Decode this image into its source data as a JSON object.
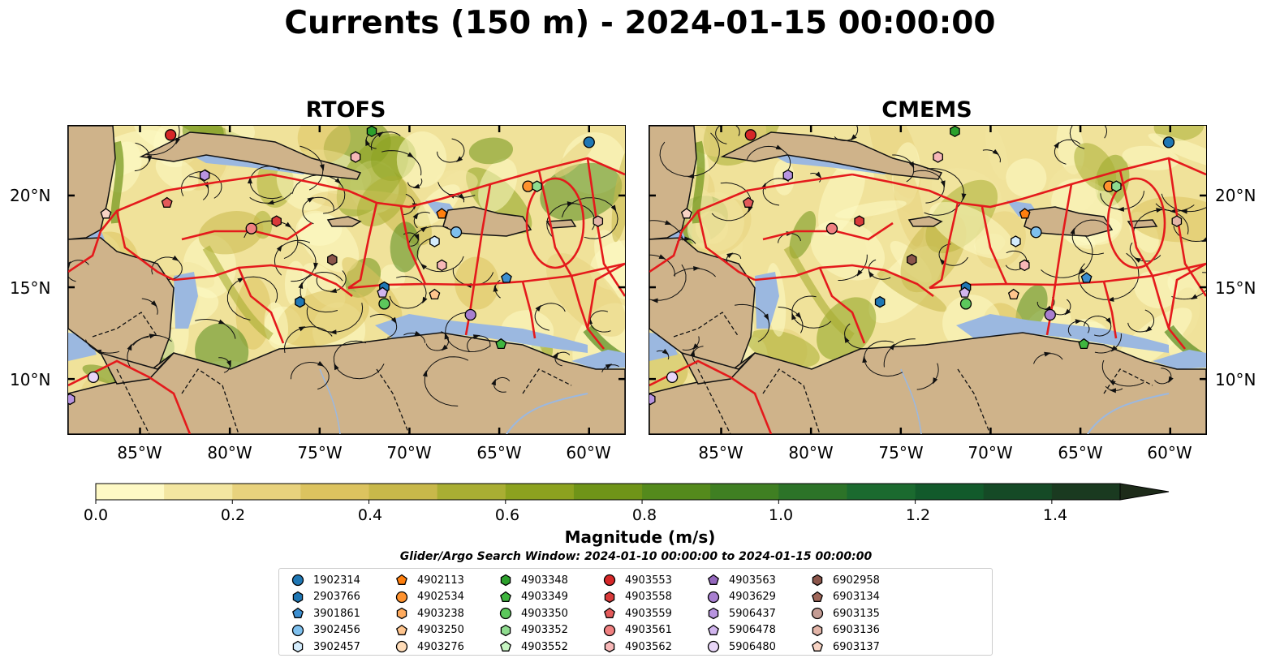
{
  "title": "Currents (150 m) - 2024-01-15 00:00:00",
  "panels": [
    {
      "title": "RTOFS"
    },
    {
      "title": "CMEMS"
    }
  ],
  "lat_labels": [
    "20°N",
    "15°N",
    "10°N"
  ],
  "lon_labels": [
    "85°W",
    "80°W",
    "75°W",
    "70°W",
    "65°W",
    "60°W"
  ],
  "colorbar": {
    "label": "Magnitude (m/s)",
    "ticks": [
      "0.0",
      "0.2",
      "0.4",
      "0.6",
      "0.8",
      "1.0",
      "1.2",
      "1.4"
    ],
    "min": 0.0,
    "max": 1.5,
    "extend": "max",
    "colors": [
      "#fef9c5",
      "#f3e6a1",
      "#e8d27d",
      "#dcc35f",
      "#c8b84a",
      "#a9ae33",
      "#8ca21f",
      "#6f9418",
      "#548a1c",
      "#3f7f22",
      "#2c7328",
      "#1b6a2f",
      "#125a2b",
      "#154a26",
      "#1a3a20",
      "#1d2b19"
    ]
  },
  "search_window": "Glider/Argo Search Window: 2024-01-10 00:00:00 to 2024-01-15 00:00:00",
  "map_colors": {
    "land": "#cfb38a",
    "water_shallow": "#9bb8e0",
    "sea_base": "#f0e29a",
    "eez": "#e41a1c"
  },
  "legend": [
    {
      "id": "1902314",
      "marker": "circle",
      "color": "#1f77b4"
    },
    {
      "id": "2903766",
      "marker": "hexagon",
      "color": "#1f77b4"
    },
    {
      "id": "3901861",
      "marker": "pentagon",
      "color": "#3c8fd1"
    },
    {
      "id": "3902456",
      "marker": "circle",
      "color": "#7ec0ee"
    },
    {
      "id": "3902457",
      "marker": "hexagon",
      "color": "#d4ecfc"
    },
    {
      "id": "4902113",
      "marker": "pentagon",
      "color": "#ff7f0e"
    },
    {
      "id": "4902534",
      "marker": "circle",
      "color": "#ff922e"
    },
    {
      "id": "4903238",
      "marker": "hexagon",
      "color": "#ffab5e"
    },
    {
      "id": "4903250",
      "marker": "pentagon",
      "color": "#ffc58e"
    },
    {
      "id": "4903276",
      "marker": "circle",
      "color": "#ffdcb8"
    },
    {
      "id": "4903348",
      "marker": "hexagon",
      "color": "#2ca02c"
    },
    {
      "id": "4903349",
      "marker": "pentagon",
      "color": "#3fb53f"
    },
    {
      "id": "4903350",
      "marker": "circle",
      "color": "#5cc85c"
    },
    {
      "id": "4903352",
      "marker": "hexagon",
      "color": "#8fdc8f"
    },
    {
      "id": "4903552",
      "marker": "pentagon",
      "color": "#c7f5c2"
    },
    {
      "id": "4903553",
      "marker": "circle",
      "color": "#d62728"
    },
    {
      "id": "4903558",
      "marker": "hexagon",
      "color": "#d93a3a"
    },
    {
      "id": "4903559",
      "marker": "pentagon",
      "color": "#e35a5a"
    },
    {
      "id": "4903561",
      "marker": "circle",
      "color": "#f08080"
    },
    {
      "id": "4903562",
      "marker": "hexagon",
      "color": "#f7b7b7"
    },
    {
      "id": "4903563",
      "marker": "pentagon",
      "color": "#9467bd"
    },
    {
      "id": "4903629",
      "marker": "circle",
      "color": "#a87fd0"
    },
    {
      "id": "5906437",
      "marker": "hexagon",
      "color": "#b894e0"
    },
    {
      "id": "5906478",
      "marker": "pentagon",
      "color": "#d1b5ee"
    },
    {
      "id": "5906480",
      "marker": "circle",
      "color": "#e8d6f8"
    },
    {
      "id": "6902958",
      "marker": "hexagon",
      "color": "#8c564b"
    },
    {
      "id": "6903134",
      "marker": "pentagon",
      "color": "#a0675a"
    },
    {
      "id": "6903135",
      "marker": "circle",
      "color": "#c49c94"
    },
    {
      "id": "6903136",
      "marker": "hexagon",
      "color": "#e3b5a8"
    },
    {
      "id": "6903137",
      "marker": "pentagon",
      "color": "#f7d3c4"
    }
  ],
  "markers": [
    {
      "id": "4903553",
      "lon": -83.3,
      "lat": 23.3
    },
    {
      "id": "4903348",
      "lon": -72.1,
      "lat": 23.5
    },
    {
      "id": "1902314",
      "lon": -60.0,
      "lat": 22.9
    },
    {
      "id": "5906437",
      "lon": -81.4,
      "lat": 21.1
    },
    {
      "id": "4903562",
      "lon": -73.0,
      "lat": 22.1
    },
    {
      "id": "6903137",
      "lon": -86.9,
      "lat": 19.0
    },
    {
      "id": "4903559",
      "lon": -83.5,
      "lat": 19.6
    },
    {
      "id": "4903561",
      "lon": -78.8,
      "lat": 18.2
    },
    {
      "id": "4903558",
      "lon": -77.4,
      "lat": 18.6
    },
    {
      "id": "4902534",
      "lon": -63.4,
      "lat": 20.5
    },
    {
      "id": "4903352",
      "lon": -62.9,
      "lat": 20.5
    },
    {
      "id": "4902113",
      "lon": -68.2,
      "lat": 19.0
    },
    {
      "id": "3902456",
      "lon": -67.4,
      "lat": 18.0
    },
    {
      "id": "3902457",
      "lon": -68.6,
      "lat": 17.5
    },
    {
      "id": "6903136",
      "lon": -59.5,
      "lat": 18.6
    },
    {
      "id": "6902958",
      "lon": -74.3,
      "lat": 16.5
    },
    {
      "id": "4903562",
      "lon": -68.2,
      "lat": 16.2
    },
    {
      "id": "2903766",
      "lon": -71.4,
      "lat": 15.0
    },
    {
      "id": "5906478",
      "lon": -71.5,
      "lat": 14.7
    },
    {
      "id": "4903350",
      "lon": -71.4,
      "lat": 14.1
    },
    {
      "id": "4903250",
      "lon": -68.6,
      "lat": 14.6
    },
    {
      "id": "3901861",
      "lon": -64.6,
      "lat": 15.5
    },
    {
      "id": "4903629",
      "lon": -66.6,
      "lat": 13.5
    },
    {
      "id": "4903349",
      "lon": -64.9,
      "lat": 11.9
    },
    {
      "id": "2903766",
      "lon": -76.1,
      "lat": 14.2
    },
    {
      "id": "5906480",
      "lon": -87.6,
      "lat": 10.1
    },
    {
      "id": "5906437",
      "lon": -88.9,
      "lat": 8.9
    }
  ]
}
